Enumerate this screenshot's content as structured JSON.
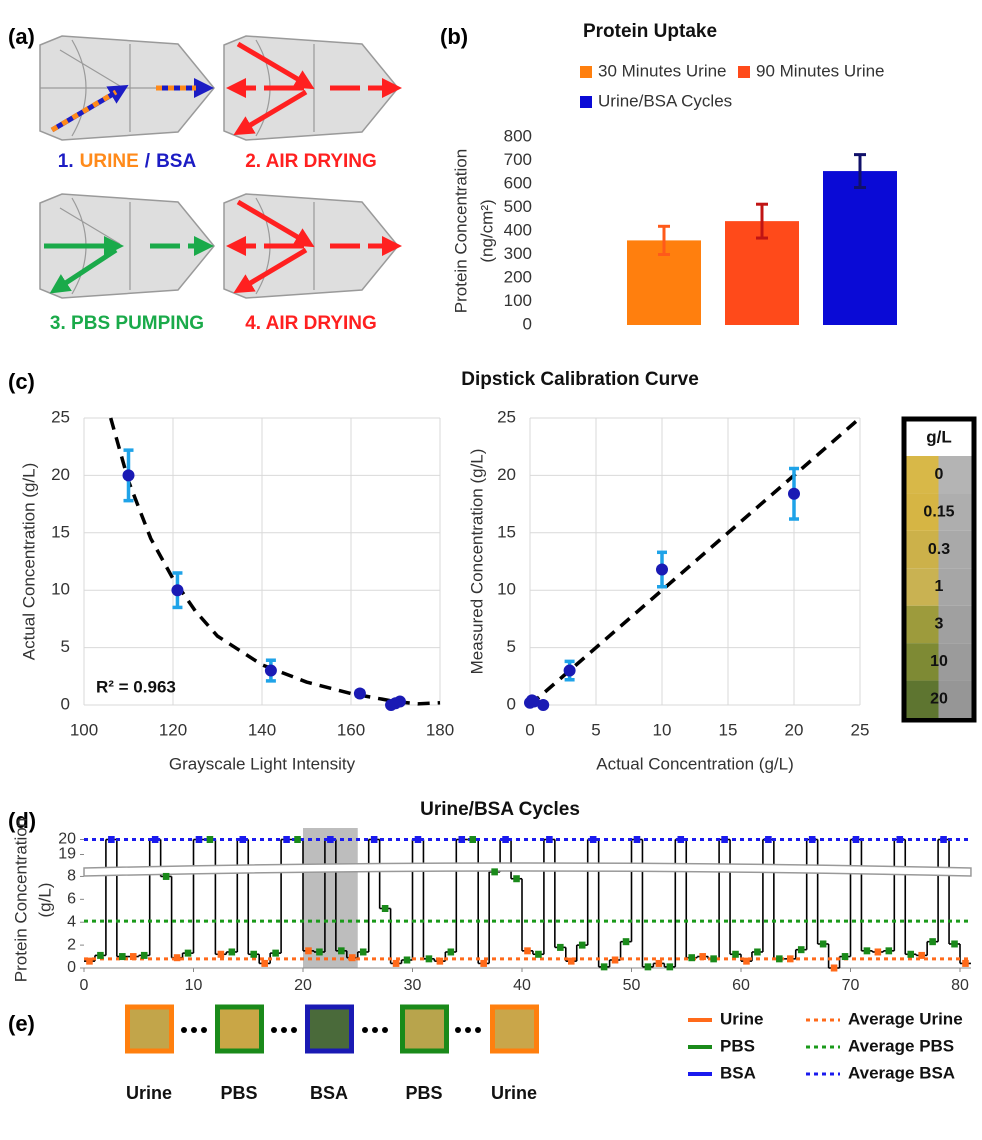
{
  "panel_labels": [
    "(a)",
    "(b)",
    "(c)",
    "(d)",
    "(e)"
  ],
  "panel_a": {
    "steps": [
      {
        "parts": [
          "1.",
          "URINE",
          "/",
          "BSA"
        ],
        "colors": [
          "#1c1cc4",
          "#ff8a1a",
          "#1c1cc4",
          "#1c1cc4"
        ]
      },
      {
        "parts": [
          "2. AIR DRYING"
        ],
        "colors": [
          "#ff2020"
        ]
      },
      {
        "parts": [
          "3. PBS PUMPING"
        ],
        "colors": [
          "#1aaa4a"
        ]
      },
      {
        "parts": [
          "4. AIR DRYING"
        ],
        "colors": [
          "#ff2020"
        ]
      }
    ]
  },
  "chart_data": [
    {
      "type": "bar",
      "title": "Protein Uptake",
      "ylabel": [
        "Protein Concentration",
        "(ng/cm²)"
      ],
      "categories": [
        null
      ],
      "series": [
        {
          "name": "30 Minutes Urine",
          "color": "#ff7f0e",
          "error_color": "#ff5a1a",
          "values": [
            360
          ],
          "errors": [
            60
          ]
        },
        {
          "name": "90 Minutes Urine",
          "color": "#ff4a1a",
          "error_color": "#c01414",
          "values": [
            442
          ],
          "errors": [
            72
          ]
        },
        {
          "name": "Urine/BSA Cycles",
          "color": "#0a0ad6",
          "error_color": "#10106a",
          "values": [
            655
          ],
          "errors": [
            70
          ]
        }
      ],
      "ylim": [
        0,
        800
      ],
      "yticks": [
        0,
        100,
        200,
        300,
        400,
        500,
        600,
        700,
        800
      ]
    },
    {
      "type": "scatter",
      "title": "Dipstick Calibration Curve",
      "xlabel": "Grayscale Light Intensity",
      "ylabel": "Actual Concentration (g/L)",
      "x": [
        110,
        121,
        142,
        162,
        169,
        170,
        171
      ],
      "values": [
        20,
        10,
        3,
        1,
        0,
        0.15,
        0.3
      ],
      "errors": [
        2.2,
        1.5,
        0.9,
        0.2,
        0.1,
        0.1,
        0.1
      ],
      "fit": {
        "x": [
          106,
          110,
          115,
          120,
          125,
          130,
          140,
          150,
          160,
          170,
          175,
          180
        ],
        "y": [
          25,
          19.5,
          14.5,
          11,
          8.2,
          6,
          3.5,
          2,
          1,
          0.3,
          0.1,
          0.2
        ]
      },
      "annotation": "R² = 0.963",
      "color": "#1a1ab4",
      "error_color": "#1fa3e8",
      "xlim": [
        100,
        180
      ],
      "xticks": [
        100,
        120,
        140,
        160,
        180
      ],
      "ylim": [
        0,
        25
      ],
      "yticks": [
        0,
        5,
        10,
        15,
        20,
        25
      ],
      "grid": true
    },
    {
      "type": "scatter",
      "xlabel": "Actual Concentration (g/L)",
      "ylabel": "Measured Concentration (g/L)",
      "x": [
        0,
        0.15,
        0.3,
        1,
        3,
        10,
        20
      ],
      "values": [
        0.2,
        0.4,
        0.3,
        0,
        3,
        11.8,
        18.4
      ],
      "errors": [
        0.1,
        0.1,
        0.1,
        0.1,
        0.8,
        1.5,
        2.2
      ],
      "fit": {
        "x": [
          0,
          25
        ],
        "y": [
          0,
          25
        ]
      },
      "color": "#1a1ab4",
      "error_color": "#1fa3e8",
      "xlim": [
        0,
        25
      ],
      "xticks": [
        0,
        5,
        10,
        15,
        20,
        25
      ],
      "ylim": [
        0,
        25
      ],
      "yticks": [
        0,
        5,
        10,
        15,
        20,
        25
      ],
      "grid": true
    },
    {
      "type": "step",
      "title": "Urine/BSA Cycles",
      "ylabel": [
        "Protein Concentration",
        "(g/L)"
      ],
      "series": [
        {
          "name": "Urine",
          "color": "#ff6a1a",
          "x": [
            0.5,
            4.5,
            8.5,
            12.5,
            16.5,
            20.5,
            24.5,
            28.5,
            32.5,
            36.5,
            40.5,
            44.5,
            48.5,
            52.5,
            56.5,
            60.5,
            64.5,
            68.5,
            72.5,
            76.5,
            80.5
          ],
          "values": [
            0.6,
            1.0,
            0.9,
            1.2,
            0.4,
            1.5,
            0.9,
            0.4,
            0.6,
            0.4,
            1.5,
            0.6,
            0.7,
            0.4,
            1.0,
            0.6,
            0.8,
            0.0,
            1.4,
            1.1,
            0.4
          ]
        },
        {
          "name": "PBS",
          "color": "#1a8a1a",
          "x": [
            1.5,
            3.5,
            5.5,
            7.5,
            9.5,
            11.5,
            13.5,
            15.5,
            17.5,
            19.5,
            21.5,
            23.5,
            25.5,
            27.5,
            29.5,
            31.5,
            33.5,
            35.5,
            37.5,
            39.5,
            41.5,
            43.5,
            45.5,
            47.5,
            49.5,
            51.5,
            53.5,
            55.5,
            57.5,
            59.5,
            61.5,
            63.5,
            65.5,
            67.5,
            69.5,
            71.5,
            73.5,
            75.5,
            77.5,
            79.5
          ],
          "values": [
            1.1,
            1.0,
            1.1,
            8.0,
            1.3,
            20,
            1.4,
            1.2,
            1.3,
            20,
            1.4,
            1.5,
            1.4,
            5.2,
            0.7,
            0.8,
            1.4,
            20,
            8.4,
            7.8,
            1.2,
            1.8,
            2.0,
            0.1,
            2.3,
            0.1,
            0.1,
            0.9,
            0.8,
            1.2,
            1.4,
            0.8,
            1.6,
            2.1,
            1.0,
            1.5,
            1.5,
            1.2,
            2.3,
            2.1
          ]
        },
        {
          "name": "BSA",
          "color": "#1a1aee",
          "x": [
            2.5,
            6.5,
            10.5,
            14.5,
            18.5,
            22.5,
            26.5,
            30.5,
            34.5,
            38.5,
            42.5,
            46.5,
            50.5,
            54.5,
            58.5,
            62.5,
            66.5,
            70.5,
            74.5,
            78.5
          ],
          "values": [
            20,
            20,
            20,
            20,
            20,
            20,
            20,
            20,
            20,
            20,
            20,
            20,
            20,
            20,
            20,
            20,
            20,
            20,
            20,
            20
          ]
        }
      ],
      "averages": [
        {
          "name": "Average Urine",
          "color": "#ff6a1a",
          "value": 0.8
        },
        {
          "name": "Average PBS",
          "color": "#1a9a1a",
          "value": 4.1
        },
        {
          "name": "Average BSA",
          "color": "#1a1aee",
          "value": 20
        }
      ],
      "highlight": [
        20,
        25
      ],
      "ybreak": [
        9,
        18.5
      ],
      "xlim": [
        0,
        81
      ],
      "xticks": [
        0,
        10,
        20,
        30,
        40,
        50,
        60,
        70,
        80
      ],
      "ylim": [
        0,
        20.5
      ],
      "yticks": [
        0,
        2,
        4,
        6,
        8,
        19,
        20
      ]
    }
  ],
  "color_chart": {
    "header": "g/L",
    "labels": [
      "0",
      "0.15",
      "0.3",
      "1",
      "3",
      "10",
      "20"
    ]
  },
  "panel_e": {
    "labels": [
      "Urine",
      "PBS",
      "BSA",
      "PBS",
      "Urine"
    ],
    "border_colors": [
      "#ff7f0e",
      "#1a8a1a",
      "#1a1ab4",
      "#1a8a1a",
      "#ff7f0e"
    ]
  }
}
